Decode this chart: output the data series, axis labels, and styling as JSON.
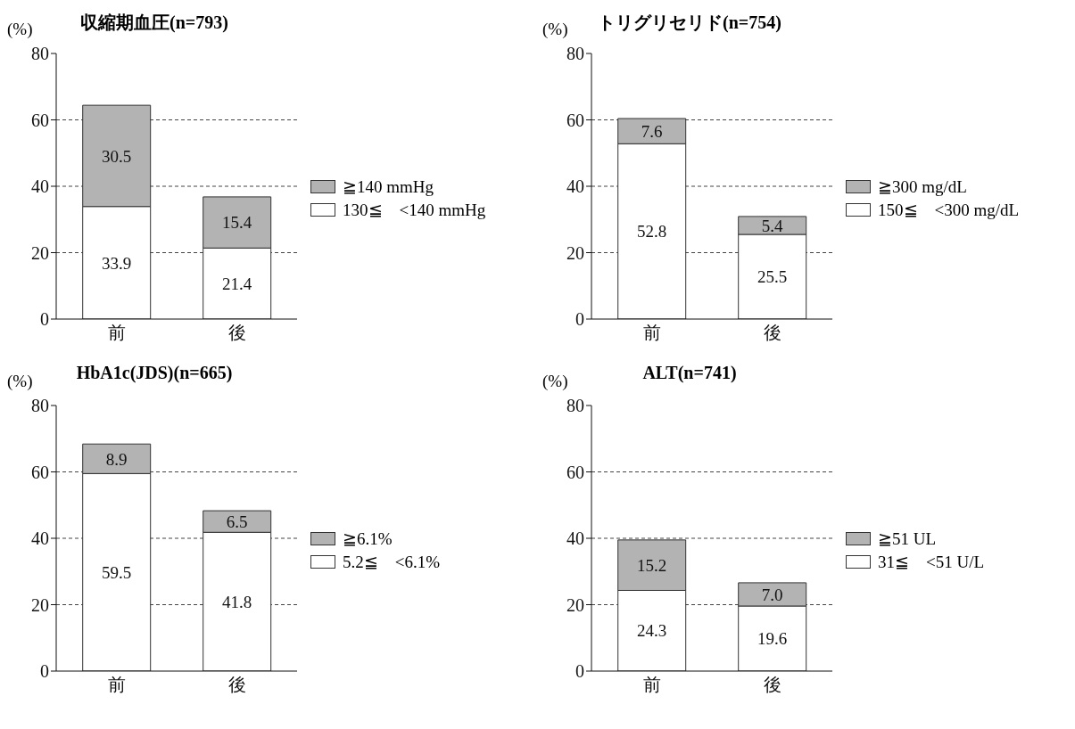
{
  "chart_data": [
    {
      "type": "bar",
      "title": "収縮期血圧(n=793)",
      "ylabel": "(%)",
      "categories": [
        "前",
        "後"
      ],
      "stacked": true,
      "data_labels": true,
      "ylim": [
        0,
        80
      ],
      "yticks": [
        0,
        20,
        40,
        60,
        80
      ],
      "grid": "y",
      "legend": "right",
      "series": [
        {
          "name": "130≦　<140 mmHg",
          "color": "#ffffff",
          "values": [
            33.9,
            21.4
          ]
        },
        {
          "name": "≧140 mmHg",
          "color": "#b3b3b3",
          "values": [
            30.5,
            15.4
          ]
        }
      ]
    },
    {
      "type": "bar",
      "title": "トリグリセリド(n=754)",
      "ylabel": "(%)",
      "categories": [
        "前",
        "後"
      ],
      "stacked": true,
      "data_labels": true,
      "ylim": [
        0,
        80
      ],
      "yticks": [
        0,
        20,
        40,
        60,
        80
      ],
      "grid": "y",
      "legend": "right",
      "series": [
        {
          "name": "150≦　<300 mg/dL",
          "color": "#ffffff",
          "values": [
            52.8,
            25.5
          ]
        },
        {
          "name": "≧300 mg/dL",
          "color": "#b3b3b3",
          "values": [
            7.6,
            5.4
          ]
        }
      ]
    },
    {
      "type": "bar",
      "title": "HbA1c(JDS)(n=665)",
      "ylabel": "(%)",
      "categories": [
        "前",
        "後"
      ],
      "stacked": true,
      "data_labels": true,
      "ylim": [
        0,
        80
      ],
      "yticks": [
        0,
        20,
        40,
        60,
        80
      ],
      "grid": "y",
      "legend": "right",
      "series": [
        {
          "name": "5.2≦　<6.1%",
          "color": "#ffffff",
          "values": [
            59.5,
            41.8
          ]
        },
        {
          "name": "≧6.1%",
          "color": "#b3b3b3",
          "values": [
            8.9,
            6.5
          ]
        }
      ]
    },
    {
      "type": "bar",
      "title": "ALT(n=741)",
      "ylabel": "(%)",
      "categories": [
        "前",
        "後"
      ],
      "stacked": true,
      "ylim": [
        0,
        80
      ],
      "yticks": [
        0,
        20,
        40,
        60,
        80
      ],
      "grid": "y",
      "legend": "right",
      "series": [
        {
          "name": "31≦　<51 U/L",
          "color": "#ffffff",
          "values": [
            24.3,
            19.6
          ],
          "value_labels": [
            "24.3",
            "19.6"
          ]
        },
        {
          "name": "≧51 UL",
          "color": "#b3b3b3",
          "values": [
            15.2,
            7.0
          ],
          "value_labels": [
            "15.2",
            "7.0"
          ]
        }
      ]
    }
  ]
}
